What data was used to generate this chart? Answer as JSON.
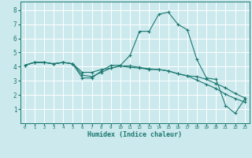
{
  "xlabel": "Humidex (Indice chaleur)",
  "bg_color": "#cce9ed",
  "grid_color": "#ffffff",
  "line_color": "#1a7870",
  "xlim": [
    -0.5,
    23.5
  ],
  "ylim": [
    0,
    8.6
  ],
  "xticks": [
    0,
    1,
    2,
    3,
    4,
    5,
    6,
    7,
    8,
    9,
    10,
    11,
    12,
    13,
    14,
    15,
    16,
    17,
    18,
    19,
    20,
    21,
    22,
    23
  ],
  "yticks": [
    1,
    2,
    3,
    4,
    5,
    6,
    7,
    8
  ],
  "line1_y": [
    4.1,
    4.3,
    4.3,
    4.2,
    4.3,
    4.2,
    3.2,
    3.2,
    3.7,
    4.1,
    4.1,
    4.8,
    6.5,
    6.5,
    7.7,
    7.85,
    7.0,
    6.6,
    4.5,
    3.2,
    3.1,
    1.25,
    0.7,
    1.7
  ],
  "line2_y": [
    4.1,
    4.3,
    4.3,
    4.2,
    4.3,
    4.2,
    3.6,
    3.6,
    3.8,
    3.9,
    4.05,
    4.05,
    3.95,
    3.85,
    3.8,
    3.7,
    3.5,
    3.35,
    3.3,
    3.1,
    2.8,
    2.5,
    2.1,
    1.8
  ],
  "line3_y": [
    4.1,
    4.3,
    4.3,
    4.2,
    4.3,
    4.2,
    3.4,
    3.3,
    3.6,
    3.9,
    4.05,
    3.95,
    3.9,
    3.8,
    3.8,
    3.7,
    3.5,
    3.35,
    3.05,
    2.75,
    2.45,
    2.05,
    1.75,
    1.5
  ]
}
